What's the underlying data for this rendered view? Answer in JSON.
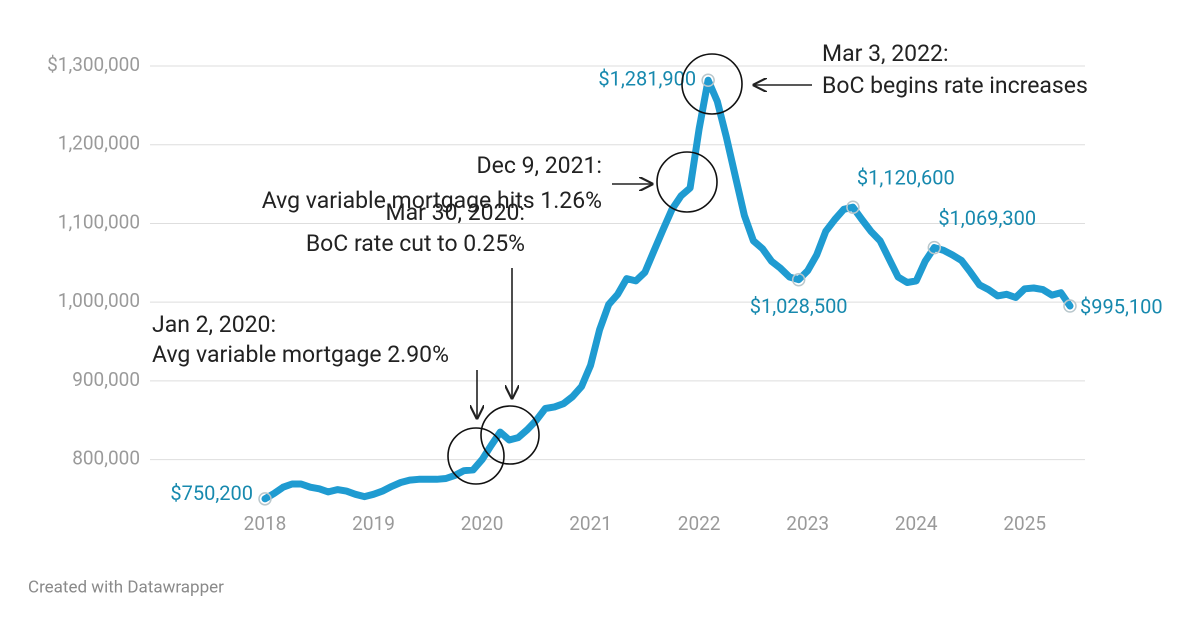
{
  "chart_data": {
    "type": "line",
    "color": "#1f9bd1",
    "label_color": "#1789ae",
    "x": [
      2018,
      2018.083,
      2018.167,
      2018.25,
      2018.333,
      2018.417,
      2018.5,
      2018.583,
      2018.667,
      2018.75,
      2018.833,
      2018.917,
      2019,
      2019.083,
      2019.167,
      2019.25,
      2019.333,
      2019.417,
      2019.5,
      2019.583,
      2019.667,
      2019.75,
      2019.833,
      2019.917,
      2020,
      2020.083,
      2020.167,
      2020.25,
      2020.333,
      2020.417,
      2020.5,
      2020.583,
      2020.667,
      2020.75,
      2020.833,
      2020.917,
      2021,
      2021.083,
      2021.167,
      2021.25,
      2021.333,
      2021.417,
      2021.5,
      2021.583,
      2021.667,
      2021.75,
      2021.833,
      2021.917,
      2022,
      2022.083,
      2022.167,
      2022.25,
      2022.333,
      2022.417,
      2022.5,
      2022.583,
      2022.667,
      2022.75,
      2022.833,
      2022.917,
      2023,
      2023.083,
      2023.167,
      2023.25,
      2023.333,
      2023.417,
      2023.5,
      2023.583,
      2023.667,
      2023.75,
      2023.833,
      2023.917,
      2024,
      2024.083,
      2024.167,
      2024.25,
      2024.333,
      2024.417,
      2024.5,
      2024.583,
      2024.667,
      2024.75,
      2024.833,
      2024.917,
      2025,
      2025.083,
      2025.167,
      2025.25,
      2025.333,
      2025.417
    ],
    "values": [
      750200,
      757000,
      765000,
      769000,
      769000,
      765000,
      763000,
      759000,
      762000,
      760000,
      756000,
      753000,
      756000,
      760000,
      766000,
      771000,
      774000,
      775000,
      775000,
      775000,
      776000,
      780000,
      786000,
      787000,
      800000,
      818000,
      835000,
      825000,
      828000,
      838000,
      850000,
      865000,
      867000,
      871000,
      880000,
      893000,
      920000,
      965000,
      997000,
      1010000,
      1030000,
      1027000,
      1038000,
      1065000,
      1092000,
      1118000,
      1135000,
      1145000,
      1220000,
      1281900,
      1255000,
      1210000,
      1160000,
      1110000,
      1078000,
      1068000,
      1052000,
      1043000,
      1032000,
      1028500,
      1040000,
      1060000,
      1090000,
      1105000,
      1118000,
      1120600,
      1105000,
      1090000,
      1078000,
      1055000,
      1032000,
      1025000,
      1027000,
      1052000,
      1069300,
      1066000,
      1060000,
      1053000,
      1038000,
      1022000,
      1016000,
      1008000,
      1010000,
      1006000,
      1017000,
      1018000,
      1016000,
      1009000,
      1012000,
      995100
    ],
    "value_labels": [
      "$750,200",
      null,
      null,
      null,
      null,
      null,
      null,
      null,
      null,
      null,
      null,
      null,
      null,
      null,
      null,
      null,
      null,
      null,
      null,
      null,
      null,
      null,
      null,
      null,
      null,
      null,
      null,
      null,
      null,
      null,
      null,
      null,
      null,
      null,
      null,
      null,
      null,
      null,
      null,
      null,
      null,
      null,
      null,
      null,
      null,
      null,
      null,
      null,
      null,
      "$1,281,900",
      null,
      null,
      null,
      null,
      null,
      null,
      null,
      null,
      null,
      "$1,028,500",
      null,
      null,
      null,
      null,
      null,
      "$1,120,600",
      null,
      null,
      null,
      null,
      null,
      null,
      null,
      null,
      "$1,069,300",
      null,
      null,
      null,
      null,
      null,
      null,
      null,
      null,
      null,
      null,
      null,
      null,
      null,
      null,
      "$995,100"
    ],
    "xlim": [
      2018,
      2025.5
    ],
    "xticks": [
      2018,
      2019,
      2020,
      2021,
      2022,
      2023,
      2024,
      2025
    ],
    "ylim": [
      750000,
      1300000
    ],
    "yticks": [
      {
        "value": 800000,
        "label": "800,000"
      },
      {
        "value": 900000,
        "label": "900,000"
      },
      {
        "value": 1000000,
        "label": "1,000,000"
      },
      {
        "value": 1100000,
        "label": "1,100,000"
      },
      {
        "value": 1200000,
        "label": "1,200,000"
      },
      {
        "value": 1300000,
        "label": "$1,300,000"
      }
    ],
    "grid": true,
    "annotations": [
      {
        "lines": [
          "Mar 3, 2022:",
          "BoC begins rate increases"
        ]
      },
      {
        "lines": [
          "Dec 9, 2021:",
          "Avg variable mortgage hits 1.26%"
        ]
      },
      {
        "lines": [
          "Mar 30, 2020:",
          "BoC rate cut to 0.25%"
        ]
      },
      {
        "lines": [
          "Jan 2, 2020:",
          "Avg variable mortgage 2.90%"
        ]
      }
    ],
    "footer": "Created with Datawrapper"
  }
}
